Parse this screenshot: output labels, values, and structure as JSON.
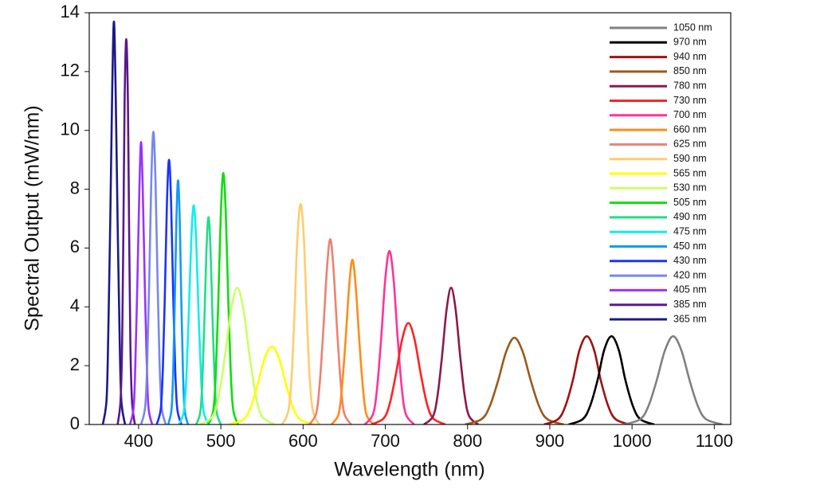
{
  "chart_data": {
    "type": "line",
    "x_label": "Wavelength (nm)",
    "y_label": "Spectral Output (mW/nm)",
    "xlim": [
      340,
      1120
    ],
    "ylim": [
      0,
      14
    ],
    "xticks": [
      400,
      500,
      600,
      700,
      800,
      900,
      1000,
      1100
    ],
    "yticks": [
      0,
      2,
      4,
      6,
      8,
      10,
      12,
      14
    ],
    "legend": "upper right",
    "series": [
      {
        "name": "1050 nm",
        "color": "#808080",
        "x": [
          990,
          1010,
          1020,
          1030,
          1040,
          1050,
          1060,
          1070,
          1080,
          1090,
          1110
        ],
        "values": [
          0,
          0.18,
          0.63,
          1.5,
          2.52,
          3,
          2.52,
          1.5,
          0.63,
          0.18,
          0
        ]
      },
      {
        "name": "970 nm",
        "color": "#000000",
        "x": [
          923,
          940,
          949,
          958,
          966,
          975,
          984,
          992,
          1001,
          1010,
          1027
        ],
        "values": [
          0,
          0.18,
          0.63,
          1.5,
          2.52,
          3,
          2.52,
          1.5,
          0.63,
          0.18,
          0
        ]
      },
      {
        "name": "940 nm",
        "color": "#a01212",
        "x": [
          893,
          910,
          919,
          928,
          936,
          945,
          954,
          962,
          971,
          980,
          997
        ],
        "values": [
          0,
          0.18,
          0.63,
          1.5,
          2.52,
          3,
          2.52,
          1.5,
          0.63,
          0.18,
          0
        ]
      },
      {
        "name": "850 nm",
        "color": "#9a5a1a",
        "x": [
          797,
          817,
          827,
          837,
          847,
          857,
          867,
          877,
          887,
          897,
          917
        ],
        "values": [
          0,
          0.18,
          0.62,
          1.48,
          2.48,
          2.95,
          2.48,
          1.48,
          0.62,
          0.18,
          0
        ]
      },
      {
        "name": "780 nm",
        "color": "#8b1a4a",
        "x": [
          747,
          758,
          763.5,
          769,
          774.5,
          780,
          785.5,
          791,
          796.5,
          802,
          813
        ],
        "values": [
          0,
          0.28,
          0.98,
          2.33,
          3.91,
          4.65,
          3.91,
          2.33,
          0.98,
          0.28,
          0
        ]
      },
      {
        "name": "730 nm",
        "color": "#ff2222",
        "x": [
          683,
          698,
          705.5,
          713,
          720.5,
          728,
          735.5,
          743,
          750.5,
          758,
          773
        ],
        "values": [
          0,
          0.21,
          0.72,
          1.73,
          2.9,
          3.45,
          2.9,
          1.73,
          0.72,
          0.21,
          0
        ]
      },
      {
        "name": "700 nm",
        "color": "#ff3399",
        "x": [
          675,
          685,
          690,
          695,
          700,
          705,
          710,
          715,
          720,
          725,
          735
        ],
        "values": [
          0,
          0.35,
          1.24,
          2.95,
          4.96,
          5.9,
          4.96,
          2.95,
          1.24,
          0.35,
          0
        ]
      },
      {
        "name": "660 nm",
        "color": "#ff8c1a",
        "x": [
          634.5,
          643,
          647,
          651.5,
          656,
          660,
          664,
          668.5,
          673,
          677,
          685.5
        ],
        "values": [
          0,
          0.34,
          1.18,
          2.8,
          4.7,
          5.6,
          4.7,
          2.8,
          1.18,
          0.34,
          0
        ]
      },
      {
        "name": "625 nm",
        "color": "#f08070",
        "x": [
          607.5,
          616,
          620,
          624.5,
          629,
          633,
          637,
          641.5,
          646,
          650,
          658.5
        ],
        "values": [
          0,
          0.38,
          1.32,
          3.15,
          5.29,
          6.3,
          5.29,
          3.15,
          1.32,
          0.38,
          0
        ]
      },
      {
        "name": "590 nm",
        "color": "#ffcc70",
        "x": [
          574.5,
          582,
          586,
          589.5,
          593,
          597,
          601,
          604.5,
          608,
          612,
          619.5
        ],
        "values": [
          0,
          0.45,
          1.58,
          3.75,
          6.3,
          7.5,
          6.3,
          3.75,
          1.58,
          0.45,
          0
        ]
      },
      {
        "name": "565 nm",
        "color": "#ffff00",
        "x": [
          509.5,
          527,
          536,
          544.5,
          553,
          562,
          571,
          579.5,
          588,
          597,
          614.5
        ],
        "values": [
          0,
          0.16,
          0.56,
          1.33,
          2.23,
          2.65,
          2.23,
          1.33,
          0.56,
          0.16,
          0
        ]
      },
      {
        "name": "530 nm",
        "color": "#ccff66",
        "x": [
          475,
          490,
          497.5,
          505,
          512.5,
          520,
          527.5,
          535,
          542.5,
          550,
          565
        ],
        "values": [
          0,
          0.28,
          0.98,
          2.33,
          3.91,
          4.65,
          3.91,
          2.33,
          0.98,
          0.28,
          0
        ]
      },
      {
        "name": "505 nm",
        "color": "#11dd11",
        "x": [
          485,
          491,
          494,
          497,
          500,
          503,
          506,
          509,
          512,
          515,
          521
        ],
        "values": [
          0,
          0.51,
          1.8,
          4.28,
          7.18,
          8.55,
          7.18,
          4.28,
          1.8,
          0.51,
          0
        ]
      },
      {
        "name": "490 nm",
        "color": "#22dd88",
        "x": [
          470,
          475,
          477.5,
          480,
          482.5,
          485,
          487.5,
          490,
          492.5,
          495,
          500
        ],
        "values": [
          0,
          0.42,
          1.48,
          3.53,
          5.92,
          7.05,
          5.92,
          3.53,
          1.48,
          0.42,
          0
        ]
      },
      {
        "name": "475 nm",
        "color": "#11eeee",
        "x": [
          449,
          455,
          458,
          461,
          464,
          467,
          470,
          473,
          476,
          479,
          485
        ],
        "values": [
          0,
          0.45,
          1.56,
          3.73,
          6.26,
          7.45,
          6.26,
          3.73,
          1.56,
          0.45,
          0
        ]
      },
      {
        "name": "450 nm",
        "color": "#1199ff",
        "x": [
          436,
          440,
          442,
          444,
          446,
          448,
          450,
          452,
          454,
          456,
          460
        ],
        "values": [
          0,
          0.5,
          1.74,
          4.15,
          6.97,
          8.3,
          6.97,
          4.15,
          1.74,
          0.5,
          0
        ]
      },
      {
        "name": "430 nm",
        "color": "#1a33ff",
        "x": [
          422,
          427,
          429.5,
          432,
          434.5,
          437,
          439.5,
          442,
          444.5,
          447,
          452
        ],
        "values": [
          0,
          0.54,
          1.89,
          4.5,
          7.56,
          9,
          7.56,
          4.5,
          1.89,
          0.54,
          0
        ]
      },
      {
        "name": "420 nm",
        "color": "#7788ee",
        "x": [
          403,
          408,
          410.5,
          413,
          415.5,
          418,
          420.5,
          423,
          425.5,
          428,
          433
        ],
        "values": [
          0,
          0.6,
          2.09,
          4.98,
          8.36,
          9.95,
          8.36,
          4.98,
          2.09,
          0.6,
          0
        ]
      },
      {
        "name": "405 nm",
        "color": "#9933ff",
        "x": [
          389.5,
          394,
          396,
          398.5,
          401,
          403,
          405,
          407.5,
          410,
          412,
          416.5
        ],
        "values": [
          0,
          0.58,
          2.02,
          4.8,
          8.06,
          9.6,
          8.06,
          4.8,
          2.02,
          0.58,
          0
        ]
      },
      {
        "name": "385 nm",
        "color": "#5a1a8a",
        "x": [
          374.5,
          378,
          380,
          381.5,
          383,
          385,
          387,
          388.5,
          390,
          392,
          395.5
        ],
        "values": [
          0,
          0.79,
          2.75,
          6.55,
          11,
          13.1,
          11,
          6.55,
          2.75,
          0.79,
          0
        ]
      },
      {
        "name": "365 nm",
        "color": "#1a1a8a",
        "x": [
          356.5,
          361,
          363,
          365.5,
          368,
          370,
          372,
          374.5,
          377,
          379,
          383.5
        ],
        "values": [
          0,
          0.82,
          2.88,
          6.85,
          11.51,
          13.7,
          11.51,
          6.85,
          2.88,
          0.82,
          0
        ]
      }
    ]
  }
}
